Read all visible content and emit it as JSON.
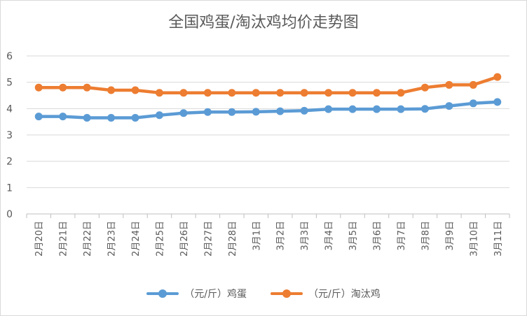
{
  "colors": {
    "series1": "#5b9bd5",
    "series2": "#ed7d31",
    "grid": "#d9d9d9",
    "text": "#595959"
  },
  "chart_data": {
    "type": "line",
    "title": "全国鸡蛋/淘汰鸡均价走势图",
    "categories": [
      "2月20日",
      "2月21日",
      "2月22日",
      "2月23日",
      "2月24日",
      "2月25日",
      "2月26日",
      "2月27日",
      "2月28日",
      "3月1日",
      "3月2日",
      "3月3日",
      "3月4日",
      "3月5日",
      "3月6日",
      "3月7日",
      "3月8日",
      "3月9日",
      "3月10日",
      "3月11日"
    ],
    "series": [
      {
        "name": "（元/斤）鸡蛋",
        "values": [
          3.7,
          3.7,
          3.65,
          3.65,
          3.65,
          3.75,
          3.83,
          3.87,
          3.87,
          3.88,
          3.9,
          3.92,
          3.98,
          3.98,
          3.98,
          3.98,
          3.99,
          4.1,
          4.2,
          4.25
        ]
      },
      {
        "name": "（元/斤）淘汰鸡",
        "values": [
          4.8,
          4.8,
          4.8,
          4.7,
          4.7,
          4.6,
          4.6,
          4.6,
          4.6,
          4.6,
          4.6,
          4.6,
          4.6,
          4.6,
          4.6,
          4.6,
          4.8,
          4.9,
          4.9,
          5.2
        ]
      }
    ],
    "yticks": [
      0,
      1,
      2,
      3,
      4,
      5,
      6
    ],
    "ylim": [
      0,
      6
    ],
    "grid": true,
    "legend": "bottom"
  }
}
